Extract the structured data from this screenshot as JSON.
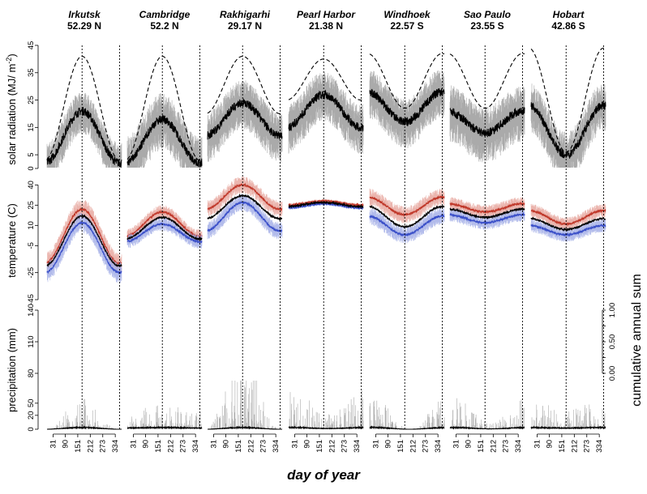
{
  "chart_data": {
    "type": "line",
    "xlabel": "day of year",
    "x_ticks": [
      31,
      90,
      151,
      212,
      273,
      334
    ],
    "panels": [
      {
        "id": "radiation",
        "ylabel_main": "solar radiation (MJ/ m",
        "ylabel_sup": "-2",
        "ylabel_end": ")",
        "ylim": [
          0,
          45
        ],
        "y_ticks": [
          0,
          5,
          15,
          25,
          35,
          45
        ]
      },
      {
        "id": "temperature",
        "ylabel": "temperature (C)",
        "ylim": [
          -45,
          45
        ],
        "y_ticks": [
          -45,
          -25,
          -5,
          10,
          25,
          40
        ]
      },
      {
        "id": "precipitation",
        "ylabel": "precipitation (mm)",
        "y_ticks": [
          0,
          20,
          50,
          80,
          110,
          140
        ]
      }
    ],
    "right_axis": {
      "label": "cumulative annual sum",
      "ylim": [
        0,
        1
      ],
      "ticks": [
        "0.00",
        "0.50",
        "1.00"
      ]
    },
    "sites": [
      {
        "name": "Irkutsk",
        "lat": "52.29 N",
        "solstice_day": 172,
        "radiation": {
          "clear_sky": [
            3,
            41
          ],
          "mean": [
            2,
            21
          ],
          "band": 6
        },
        "temperature": {
          "mean": [
            -20,
            17
          ],
          "max": [
            -18,
            22
          ],
          "min": [
            -25,
            12
          ],
          "band": 6
        },
        "cumulative": {
          "shape": "monsoon",
          "spread": 0.03
        },
        "daily_precip": {
          "max_mm": 40,
          "amp": 1,
          "noise": 0.7
        }
      },
      {
        "name": "Cambridge",
        "lat": "52.2 N",
        "solstice_day": 172,
        "radiation": {
          "clear_sky": [
            3,
            41
          ],
          "mean": [
            2,
            18
          ],
          "band": 8
        },
        "temperature": {
          "mean": [
            0,
            16
          ],
          "max": [
            2,
            20
          ],
          "min": [
            -2,
            11
          ],
          "band": 4
        },
        "cumulative": {
          "shape": "linear",
          "spread": 0.05
        },
        "daily_precip": {
          "max_mm": 30,
          "amp": 0.3,
          "noise": 0.8
        }
      },
      {
        "name": "Rakhigarhi",
        "lat": "29.17 N",
        "solstice_day": 172,
        "radiation": {
          "clear_sky": [
            20,
            41
          ],
          "mean": [
            12,
            24
          ],
          "band": 7
        },
        "temperature": {
          "mean": [
            15,
            32
          ],
          "max": [
            22,
            40
          ],
          "min": [
            6,
            27
          ],
          "band": 5
        },
        "cumulative": {
          "shape": "monsoon",
          "spread": 0.06
        },
        "daily_precip": {
          "max_mm": 80,
          "amp": 1,
          "noise": 0.9
        }
      },
      {
        "name": "Pearl Harbor",
        "lat": "21.38 N",
        "solstice_day": 172,
        "radiation": {
          "clear_sky": [
            25,
            40
          ],
          "mean": [
            15,
            27
          ],
          "band": 7
        },
        "temperature": {
          "mean": [
            24,
            27
          ],
          "max": [
            25,
            28
          ],
          "min": [
            23,
            26
          ],
          "band": 1
        },
        "cumulative": {
          "shape": "wetwinter",
          "spread": 0.1
        },
        "daily_precip": {
          "max_mm": 60,
          "amp": 0.6,
          "noise": 0.6
        }
      },
      {
        "name": "Windhoek",
        "lat": "22.57 S",
        "solstice_day": 355,
        "radiation": {
          "clear_sky": [
            22,
            42
          ],
          "mean": [
            17,
            28
          ],
          "band": 7
        },
        "temperature": {
          "mean": [
            9,
            24
          ],
          "max": [
            18,
            31
          ],
          "min": [
            3,
            17
          ],
          "band": 5
        },
        "cumulative": {
          "shape": "summerwet_s",
          "spread": 0.12
        },
        "daily_precip": {
          "max_mm": 45,
          "amp": 1,
          "noise": 0.7
        }
      },
      {
        "name": "Sao Paulo",
        "lat": "23.55 S",
        "solstice_day": 355,
        "radiation": {
          "clear_sky": [
            22,
            42
          ],
          "mean": [
            13,
            21
          ],
          "band": 8
        },
        "temperature": {
          "mean": [
            16,
            22
          ],
          "max": [
            20,
            26
          ],
          "min": [
            12,
            18
          ],
          "band": 4
        },
        "cumulative": {
          "shape": "summerwet_s_mild",
          "spread": 0.05
        },
        "daily_precip": {
          "max_mm": 40,
          "amp": 0.8,
          "noise": 0.8
        }
      },
      {
        "name": "Hobart",
        "lat": "42.86 S",
        "solstice_day": 355,
        "radiation": {
          "clear_sky": [
            6,
            44
          ],
          "mean": [
            5,
            23
          ],
          "band": 7
        },
        "temperature": {
          "mean": [
            7,
            15
          ],
          "max": [
            11,
            21
          ],
          "min": [
            3,
            10
          ],
          "band": 4
        },
        "cumulative": {
          "shape": "linear",
          "spread": 0.05
        },
        "daily_precip": {
          "max_mm": 35,
          "amp": 0.3,
          "noise": 0.8
        }
      }
    ]
  },
  "colors": {
    "mean_line": "#000000",
    "band": "#aaaaaa",
    "clear_sky": "#000000",
    "temp_max": "#c0392b",
    "temp_max_band": "#e8a8a0",
    "temp_min": "#3a4fc8",
    "temp_min_band": "#a6b0e8",
    "cumulative_lines": "#000000",
    "precip_band": "#aaaaaa"
  }
}
